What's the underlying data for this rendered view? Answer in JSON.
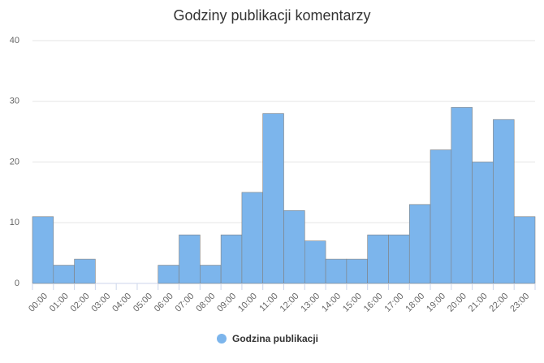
{
  "chart_data": {
    "type": "bar",
    "title": "Godziny publikacji komentarzy",
    "categories": [
      "00:00",
      "01:00",
      "02:00",
      "03:00",
      "04:00",
      "05:00",
      "06:00",
      "07:00",
      "08:00",
      "09:00",
      "10:00",
      "11:00",
      "12:00",
      "13:00",
      "14:00",
      "15:00",
      "16:00",
      "17:00",
      "18:00",
      "19:00",
      "20:00",
      "21:00",
      "22:00",
      "23:00"
    ],
    "series": [
      {
        "name": "Godzina publikacji",
        "color": "#7cb5ec",
        "values": [
          11,
          3,
          4,
          0,
          0,
          0,
          3,
          8,
          3,
          8,
          15,
          28,
          12,
          7,
          4,
          4,
          8,
          8,
          13,
          22,
          29,
          20,
          27,
          11
        ]
      }
    ],
    "ylim": [
      0,
      40
    ],
    "yticks": [
      0,
      10,
      20,
      30,
      40
    ],
    "grid": true,
    "legend": "bottom"
  }
}
